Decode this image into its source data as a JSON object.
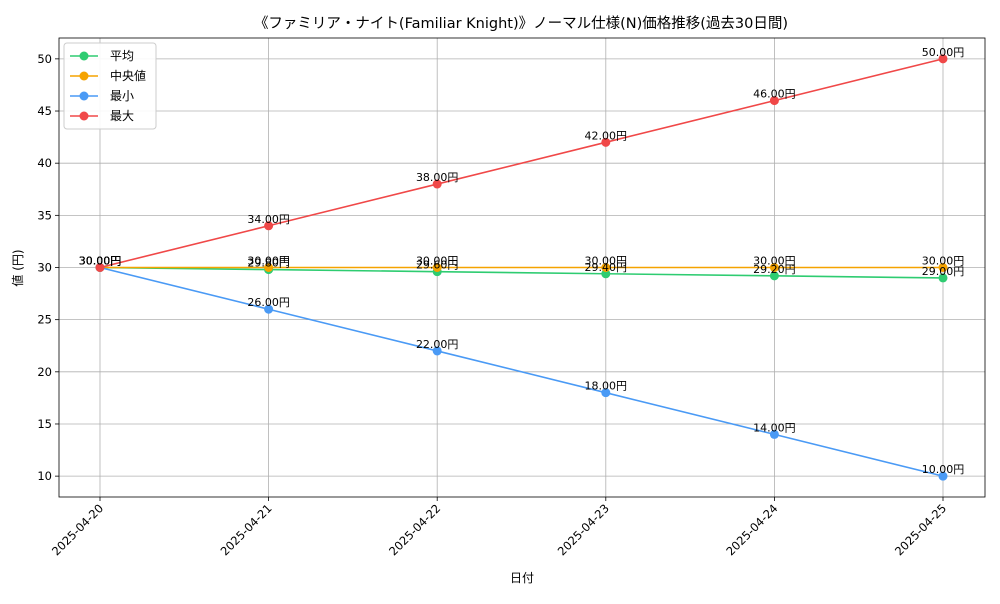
{
  "chart_data": {
    "type": "line",
    "title": "《ファミリア・ナイト(Familiar Knight)》ノーマル仕様(N)価格推移(過去30日間)",
    "xlabel": "日付",
    "ylabel": "値 (円)",
    "ylim": [
      8,
      52
    ],
    "yticks": [
      10,
      15,
      20,
      25,
      30,
      35,
      40,
      45,
      50
    ],
    "grid": true,
    "legend_position": "top-left",
    "categories": [
      "2025-04-20",
      "2025-04-21",
      "2025-04-22",
      "2025-04-23",
      "2025-04-24",
      "2025-04-25"
    ],
    "series": [
      {
        "name": "平均",
        "color": "#2ecc71",
        "values": [
          30.0,
          29.8,
          29.6,
          29.4,
          29.2,
          29.0
        ],
        "labels": [
          "30.00円",
          "29.80円",
          "29.60円",
          "29.40円",
          "29.20円",
          "29.00円"
        ]
      },
      {
        "name": "中央値",
        "color": "#f5a300",
        "values": [
          30.0,
          30.0,
          30.0,
          30.0,
          30.0,
          30.0
        ],
        "labels": [
          "30.00円",
          "30.00円",
          "30.00円",
          "30.00円",
          "30.00円",
          "30.00円"
        ]
      },
      {
        "name": "最小",
        "color": "#4a9af5",
        "values": [
          30.0,
          26.0,
          22.0,
          18.0,
          14.0,
          10.0
        ],
        "labels": [
          "30.00円",
          "26.00円",
          "22.00円",
          "18.00円",
          "14.00円",
          "10.00円"
        ]
      },
      {
        "name": "最大",
        "color": "#f04848",
        "values": [
          30.0,
          34.0,
          38.0,
          42.0,
          46.0,
          50.0
        ],
        "labels": [
          "30.00円",
          "34.00円",
          "38.00円",
          "42.00円",
          "46.00円",
          "50.00円"
        ]
      }
    ]
  }
}
